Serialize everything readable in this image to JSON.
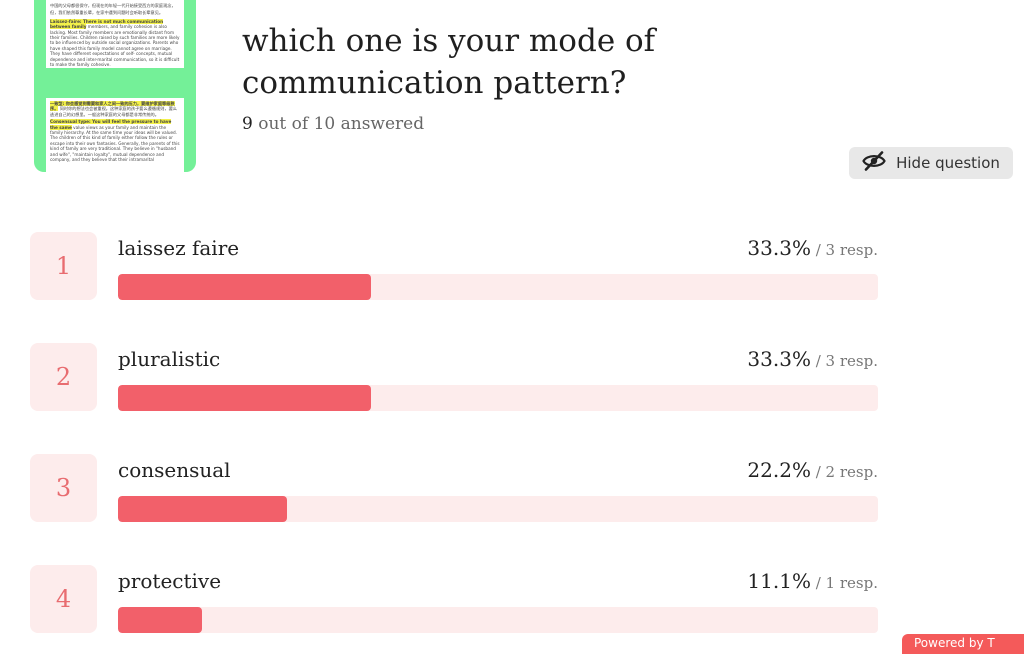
{
  "question": {
    "title": "which one is your mode of communication pattern?",
    "answered_num": "9",
    "answered_suffix": " out of 10 answered",
    "hide_label": "Hide question"
  },
  "thumbnail": {
    "top_lines": [
      "中国的父母都很保守，但现在的年轻一代开始接受西方的家庭观念，",
      "但，我们依然尊重长辈，在家中遇到问题时会听取长辈意见。",
      "Laissez-faire: There is not much communication between family",
      "members, and family cohesion is also lacking. Most family",
      "members are emotionally distant from their families. Children",
      "raised by such families are more likely to be influenced by outside",
      "social organizations. Parents who have shaped this family model",
      "cannot agree on marriage. They have different expectations of self-",
      "concepts, mutual dependence and inter-marital communication, so",
      "it is difficult to make the family cohesive."
    ],
    "bottom_lines": [
      "一致型: 你会感觉到需要和家人之间一致的压力，要维护家庭等级秩序。",
      "同时你的想法也会被重视。这种家庭的孩子要么遵循规则，要么",
      "逃进自己的幻想里。一般这种家庭的父母都是非常传统的。",
      "Consensual type: You will feel the pressure to have the same",
      "value views as your family and maintain the family hierarchy. At the",
      "same time your ideas will be valued. The children of this kind of",
      "family either follow the rules or escape into their own fantasies.",
      "Generally, the parents of this kind of family are very traditional. They",
      "believe in \"husband and wife\", \"maintain loyalty\", mutual",
      "dependence and company, and they believe that their intramarital"
    ]
  },
  "options": [
    {
      "index": "1",
      "label": "laissez faire",
      "percent": "33.3%",
      "resp": " / 3 resp.",
      "fraction": 0.333
    },
    {
      "index": "2",
      "label": "pluralistic",
      "percent": "33.3%",
      "resp": " / 3 resp.",
      "fraction": 0.333
    },
    {
      "index": "3",
      "label": "consensual",
      "percent": "22.2%",
      "resp": " / 2 resp.",
      "fraction": 0.222
    },
    {
      "index": "4",
      "label": "protective",
      "percent": "11.1%",
      "resp": " / 1 resp.",
      "fraction": 0.111
    }
  ],
  "footer": {
    "powered_label": "Powered by T"
  },
  "colors": {
    "bar_fill": "#f2606a",
    "bar_track": "#fdecec",
    "thumb_bg": "#74f098"
  }
}
